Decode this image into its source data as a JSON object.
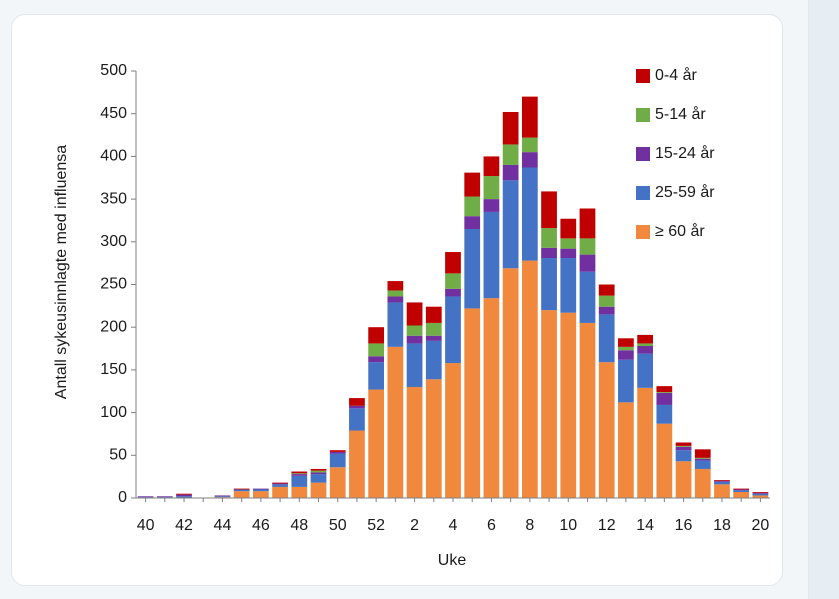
{
  "chart_data": {
    "type": "bar",
    "stacked": true,
    "xlabel": "Uke",
    "ylabel": "Antall sykeusinnlagte med influensa",
    "ylim": [
      0,
      500
    ],
    "yticks": [
      0,
      50,
      100,
      150,
      200,
      250,
      300,
      350,
      400,
      450,
      500
    ],
    "categories": [
      40,
      41,
      42,
      43,
      44,
      45,
      46,
      47,
      48,
      49,
      50,
      51,
      52,
      1,
      2,
      3,
      4,
      5,
      6,
      7,
      8,
      9,
      10,
      11,
      12,
      13,
      14,
      15,
      16,
      17,
      18,
      19,
      20
    ],
    "xtick_labels": [
      "40",
      "42",
      "44",
      "46",
      "48",
      "50",
      "52",
      "2",
      "4",
      "6",
      "8",
      "10",
      "12",
      "14",
      "16",
      "18",
      "20"
    ],
    "legend_position": "top-right",
    "grid": false,
    "series": [
      {
        "name": "≥ 60 år",
        "color": "#f0883e",
        "values": [
          0,
          0,
          0,
          0,
          1,
          8,
          8,
          13,
          13,
          18,
          36,
          79,
          127,
          177,
          130,
          139,
          158,
          222,
          234,
          269,
          278,
          220,
          217,
          205,
          159,
          112,
          129,
          87,
          43,
          34,
          16,
          7,
          3
        ]
      },
      {
        "name": "25-59 år",
        "color": "#4472c4",
        "values": [
          1,
          1,
          2,
          0,
          1,
          2,
          2,
          3,
          13,
          10,
          16,
          26,
          32,
          52,
          51,
          45,
          78,
          93,
          101,
          103,
          109,
          61,
          64,
          60,
          56,
          50,
          40,
          22,
          13,
          10,
          3,
          2,
          2
        ]
      },
      {
        "name": "15-24 år",
        "color": "#7030a0",
        "values": [
          1,
          1,
          2,
          0,
          1,
          0,
          1,
          1,
          2,
          2,
          2,
          3,
          7,
          7,
          9,
          6,
          9,
          15,
          15,
          18,
          18,
          12,
          11,
          20,
          9,
          11,
          9,
          14,
          4,
          2,
          1,
          1,
          1
        ]
      },
      {
        "name": "5-14 år",
        "color": "#70ad47",
        "values": [
          0,
          0,
          0,
          0,
          0,
          0,
          0,
          0,
          1,
          2,
          0,
          0,
          15,
          7,
          12,
          15,
          18,
          23,
          27,
          24,
          17,
          23,
          12,
          19,
          13,
          4,
          3,
          1,
          1,
          1,
          0,
          0,
          0
        ]
      },
      {
        "name": "0-4 år",
        "color": "#c00000",
        "values": [
          0,
          0,
          1,
          0,
          0,
          1,
          0,
          1,
          2,
          2,
          2,
          9,
          19,
          11,
          27,
          19,
          25,
          28,
          23,
          38,
          48,
          43,
          23,
          35,
          13,
          10,
          10,
          7,
          4,
          10,
          1,
          1,
          1
        ]
      }
    ]
  }
}
